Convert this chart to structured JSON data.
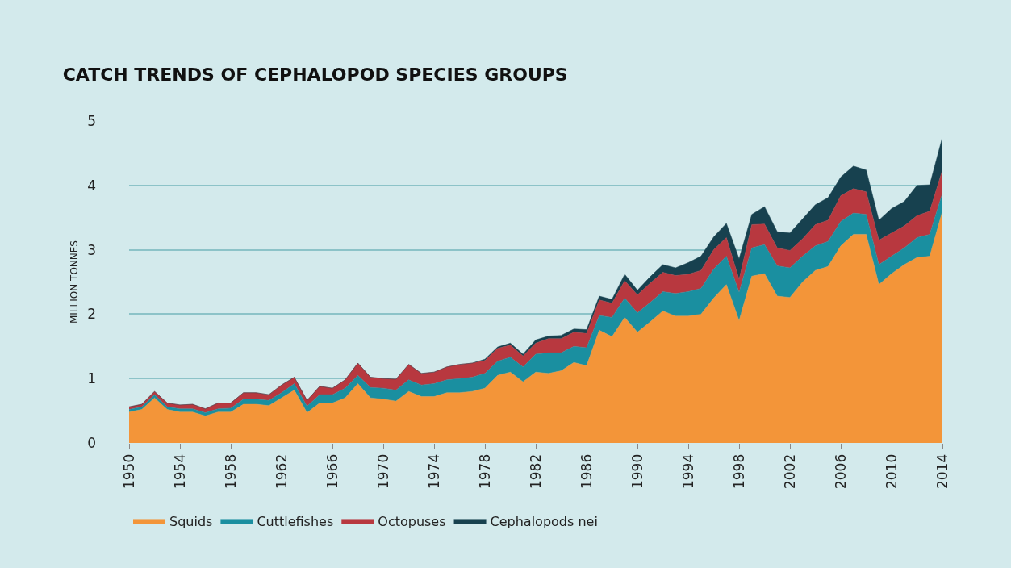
{
  "chart_data": {
    "type": "area",
    "title": "CATCH TRENDS OF CEPHALOPOD SPECIES GROUPS",
    "ylabel": "MILLION TONNES",
    "x": [
      1950,
      1951,
      1952,
      1953,
      1954,
      1955,
      1956,
      1957,
      1958,
      1959,
      1960,
      1961,
      1962,
      1963,
      1964,
      1965,
      1966,
      1967,
      1968,
      1969,
      1970,
      1971,
      1972,
      1973,
      1974,
      1975,
      1976,
      1977,
      1978,
      1979,
      1980,
      1981,
      1982,
      1983,
      1984,
      1985,
      1986,
      1987,
      1988,
      1989,
      1990,
      1991,
      1992,
      1993,
      1994,
      1995,
      1996,
      1997,
      1998,
      1999,
      2000,
      2001,
      2002,
      2003,
      2004,
      2005,
      2006,
      2007,
      2008,
      2009,
      2010,
      2011,
      2012,
      2013,
      2014
    ],
    "stacked": true,
    "series": [
      {
        "name": "Squids",
        "color": "#f39539",
        "values": [
          0.48,
          0.52,
          0.7,
          0.52,
          0.48,
          0.48,
          0.42,
          0.48,
          0.48,
          0.6,
          0.6,
          0.58,
          0.7,
          0.82,
          0.47,
          0.62,
          0.62,
          0.7,
          0.92,
          0.7,
          0.68,
          0.65,
          0.8,
          0.72,
          0.72,
          0.78,
          0.78,
          0.8,
          0.85,
          1.05,
          1.1,
          0.95,
          1.1,
          1.08,
          1.12,
          1.25,
          1.2,
          1.75,
          1.65,
          1.95,
          1.72,
          1.88,
          2.05,
          1.97,
          1.97,
          2.0,
          2.25,
          2.46,
          1.9,
          2.59,
          2.63,
          2.28,
          2.26,
          2.5,
          2.68,
          2.74,
          3.06,
          3.24,
          3.24,
          2.46,
          2.63,
          2.77,
          2.88,
          2.9,
          3.6
        ]
      },
      {
        "name": "Cuttlefishes",
        "color": "#1a8fa0",
        "values": [
          0.04,
          0.04,
          0.05,
          0.04,
          0.05,
          0.05,
          0.05,
          0.05,
          0.06,
          0.08,
          0.08,
          0.08,
          0.08,
          0.1,
          0.1,
          0.13,
          0.13,
          0.15,
          0.13,
          0.16,
          0.17,
          0.17,
          0.18,
          0.18,
          0.2,
          0.2,
          0.22,
          0.22,
          0.23,
          0.22,
          0.23,
          0.23,
          0.28,
          0.32,
          0.28,
          0.25,
          0.28,
          0.23,
          0.3,
          0.3,
          0.3,
          0.3,
          0.3,
          0.35,
          0.38,
          0.4,
          0.45,
          0.44,
          0.44,
          0.44,
          0.45,
          0.47,
          0.46,
          0.4,
          0.38,
          0.39,
          0.38,
          0.33,
          0.31,
          0.31,
          0.27,
          0.26,
          0.31,
          0.34,
          0.28
        ]
      },
      {
        "name": "Octopuses",
        "color": "#b8383f",
        "values": [
          0.04,
          0.04,
          0.05,
          0.06,
          0.06,
          0.07,
          0.06,
          0.09,
          0.08,
          0.1,
          0.1,
          0.09,
          0.12,
          0.1,
          0.09,
          0.13,
          0.1,
          0.13,
          0.19,
          0.16,
          0.15,
          0.17,
          0.24,
          0.18,
          0.18,
          0.2,
          0.22,
          0.22,
          0.2,
          0.2,
          0.19,
          0.17,
          0.17,
          0.22,
          0.22,
          0.22,
          0.22,
          0.24,
          0.22,
          0.27,
          0.28,
          0.3,
          0.3,
          0.28,
          0.27,
          0.28,
          0.3,
          0.29,
          0.2,
          0.36,
          0.32,
          0.28,
          0.27,
          0.27,
          0.33,
          0.33,
          0.4,
          0.38,
          0.35,
          0.38,
          0.36,
          0.34,
          0.34,
          0.36,
          0.36
        ]
      },
      {
        "name": "Cephalopods nei",
        "color": "#17414f",
        "values": [
          0,
          0,
          0,
          0,
          0,
          0,
          0,
          0,
          0,
          0,
          0,
          0,
          0,
          0,
          0,
          0,
          0,
          0,
          0,
          0,
          0,
          0,
          0,
          0,
          0,
          0,
          0,
          0,
          0.02,
          0.02,
          0.03,
          0.03,
          0.05,
          0.04,
          0.05,
          0.05,
          0.06,
          0.06,
          0.06,
          0.1,
          0.07,
          0.1,
          0.12,
          0.12,
          0.18,
          0.22,
          0.2,
          0.22,
          0.32,
          0.16,
          0.27,
          0.25,
          0.27,
          0.31,
          0.31,
          0.35,
          0.29,
          0.35,
          0.34,
          0.31,
          0.38,
          0.38,
          0.47,
          0.41,
          0.51
        ]
      }
    ],
    "xlim": [
      1950,
      2014
    ],
    "xticks": [
      1950,
      1954,
      1958,
      1962,
      1966,
      1970,
      1974,
      1978,
      1982,
      1986,
      1990,
      1994,
      1998,
      2002,
      2006,
      2010,
      2014
    ],
    "ylim": [
      0,
      5
    ],
    "yticks": [
      0,
      1,
      2,
      3,
      4,
      5
    ],
    "grid": "y",
    "legend": "bottom"
  }
}
